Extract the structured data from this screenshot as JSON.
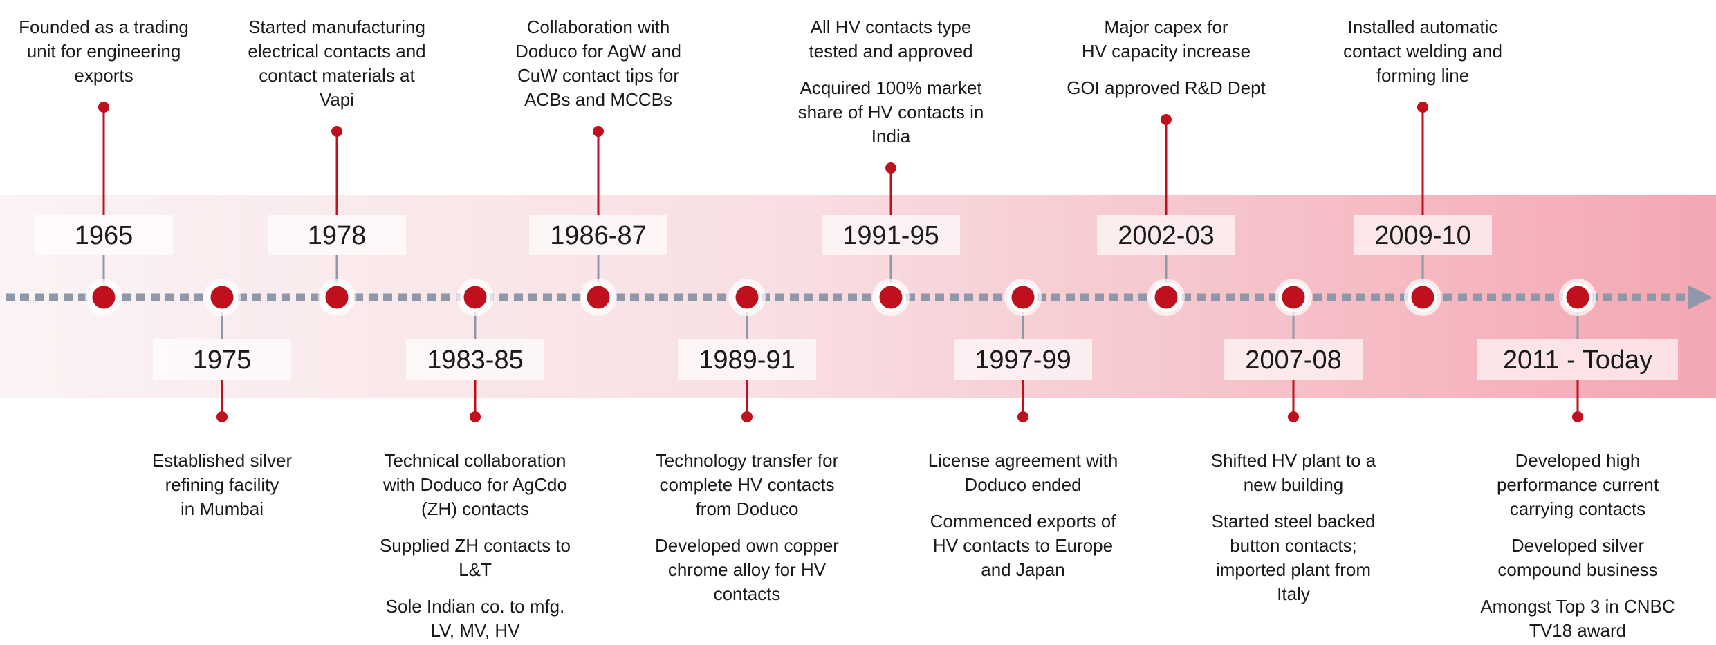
{
  "timeline": {
    "events": [
      {
        "year": "1965",
        "position": "above",
        "paragraphs": [
          [
            "Founded as a trading",
            "unit for engineering",
            "exports"
          ]
        ]
      },
      {
        "year": "1975",
        "position": "below",
        "paragraphs": [
          [
            "Established silver",
            "refining facility",
            "in Mumbai"
          ]
        ]
      },
      {
        "year": "1978",
        "position": "above",
        "paragraphs": [
          [
            "Started manufacturing",
            "electrical contacts and",
            "contact materials at",
            "Vapi"
          ]
        ]
      },
      {
        "year": "1983-85",
        "position": "below",
        "paragraphs": [
          [
            "Technical collaboration",
            "with Doduco for AgCdo",
            "(ZH) contacts"
          ],
          [
            "Supplied ZH contacts to",
            "L&T"
          ],
          [
            "Sole Indian co. to mfg.",
            "LV, MV, HV"
          ]
        ]
      },
      {
        "year": "1986-87",
        "position": "above",
        "paragraphs": [
          [
            "Collaboration with",
            "Doduco for AgW and",
            "CuW contact tips for",
            "ACBs and MCCBs"
          ]
        ]
      },
      {
        "year": "1989-91",
        "position": "below",
        "paragraphs": [
          [
            "Technology transfer for",
            "complete HV contacts",
            "from Doduco"
          ],
          [
            "Developed own copper",
            "chrome alloy for HV",
            "contacts"
          ]
        ]
      },
      {
        "year": "1991-95",
        "position": "above",
        "paragraphs": [
          [
            "All HV contacts type",
            "tested and approved"
          ],
          [
            "Acquired 100% market",
            "share of HV contacts in",
            "India"
          ]
        ]
      },
      {
        "year": "1997-99",
        "position": "below",
        "paragraphs": [
          [
            "License agreement with",
            "Doduco ended"
          ],
          [
            "Commenced exports of",
            "HV contacts to Europe",
            "and Japan"
          ]
        ]
      },
      {
        "year": "2002-03",
        "position": "above",
        "paragraphs": [
          [
            "Major capex for",
            "HV capacity increase"
          ],
          [
            "GOI approved R&D Dept"
          ]
        ]
      },
      {
        "year": "2007-08",
        "position": "below",
        "paragraphs": [
          [
            "Shifted HV plant to a",
            "new building"
          ],
          [
            "Started steel backed",
            "button contacts;",
            "imported plant from",
            "Italy"
          ]
        ]
      },
      {
        "year": "2009-10",
        "position": "above",
        "paragraphs": [
          [
            "Installed automatic",
            "contact welding and",
            "forming line"
          ]
        ]
      },
      {
        "year": "2011 - Today",
        "position": "below",
        "paragraphs": [
          [
            "Developed high",
            "performance current",
            "carrying contacts"
          ],
          [
            "Developed silver",
            "compound business"
          ],
          [
            "Amongst Top 3 in CNBC",
            "TV18 award"
          ]
        ]
      }
    ]
  }
}
